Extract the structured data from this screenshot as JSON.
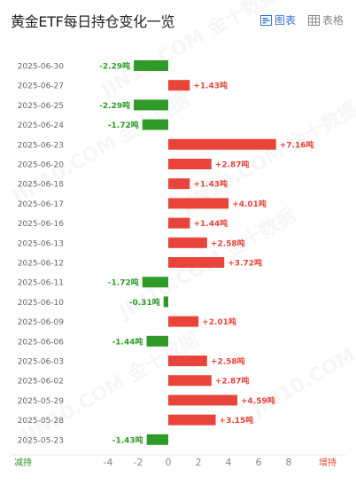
{
  "header": {
    "title": "黄金ETF每日持仓变化一览",
    "tab_chart_label": "图表",
    "tab_table_label": "表格"
  },
  "watermark": "JIN10.COM 金十数据",
  "colors": {
    "increase": "#e8443a",
    "decrease": "#2f9a28",
    "active_tab": "#3a6fd8"
  },
  "chart_data": {
    "type": "bar",
    "orientation": "horizontal",
    "categories": [
      "2025-06-30",
      "2025-06-27",
      "2025-06-25",
      "2025-06-24",
      "2025-06-23",
      "2025-06-20",
      "2025-06-18",
      "2025-06-17",
      "2025-06-16",
      "2025-06-13",
      "2025-06-12",
      "2025-06-11",
      "2025-06-10",
      "2025-06-09",
      "2025-06-06",
      "2025-06-03",
      "2025-06-02",
      "2025-05-29",
      "2025-05-28",
      "2025-05-23"
    ],
    "values": [
      -2.29,
      1.43,
      -2.29,
      -1.72,
      7.16,
      2.87,
      1.43,
      4.01,
      1.44,
      2.58,
      3.72,
      -1.72,
      -0.31,
      2.01,
      -1.44,
      2.58,
      2.87,
      4.59,
      3.15,
      -1.43
    ],
    "labels": [
      "-2.29吨",
      "+1.43吨",
      "-2.29吨",
      "-1.72吨",
      "+7.16吨",
      "+2.87吨",
      "+1.43吨",
      "+4.01吨",
      "+1.44吨",
      "+2.58吨",
      "+3.72吨",
      "-1.72吨",
      "-0.31吨",
      "+2.01吨",
      "-1.44吨",
      "+2.58吨",
      "+2.87吨",
      "+4.59吨",
      "+3.15吨",
      "-1.43吨"
    ],
    "unit": "吨",
    "xlim": [
      -4,
      8
    ],
    "xticks": [
      "-4",
      "-2",
      "0",
      "2",
      "4",
      "6",
      "8"
    ],
    "xlabel_left": "减持",
    "xlabel_right": "增持",
    "grid": false
  }
}
